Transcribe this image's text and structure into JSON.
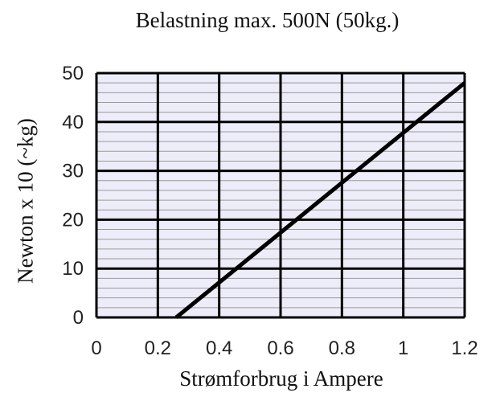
{
  "chart_data": {
    "type": "line",
    "title": "Belastning max. 500N (50kg.)",
    "xlabel": "Strømforbrug i Ampere",
    "ylabel": "Newton x 10 (~kg)",
    "xlim": [
      0,
      1.2
    ],
    "ylim": [
      0,
      50
    ],
    "x_ticks": [
      "0",
      "0.2",
      "0.4",
      "0.6",
      "0.8",
      "1",
      "1.2"
    ],
    "y_ticks": [
      "0",
      "10",
      "20",
      "30",
      "40",
      "50"
    ],
    "grid": true,
    "series": [
      {
        "values": [
          {
            "x": 0.26,
            "y": 0
          },
          {
            "x": 1.2,
            "y": 48
          }
        ]
      }
    ],
    "colors": {
      "plot_bg": "#ECEDF8",
      "grid": "#000000",
      "minor_grid": "#9A9A9A",
      "line": "#000000"
    }
  }
}
